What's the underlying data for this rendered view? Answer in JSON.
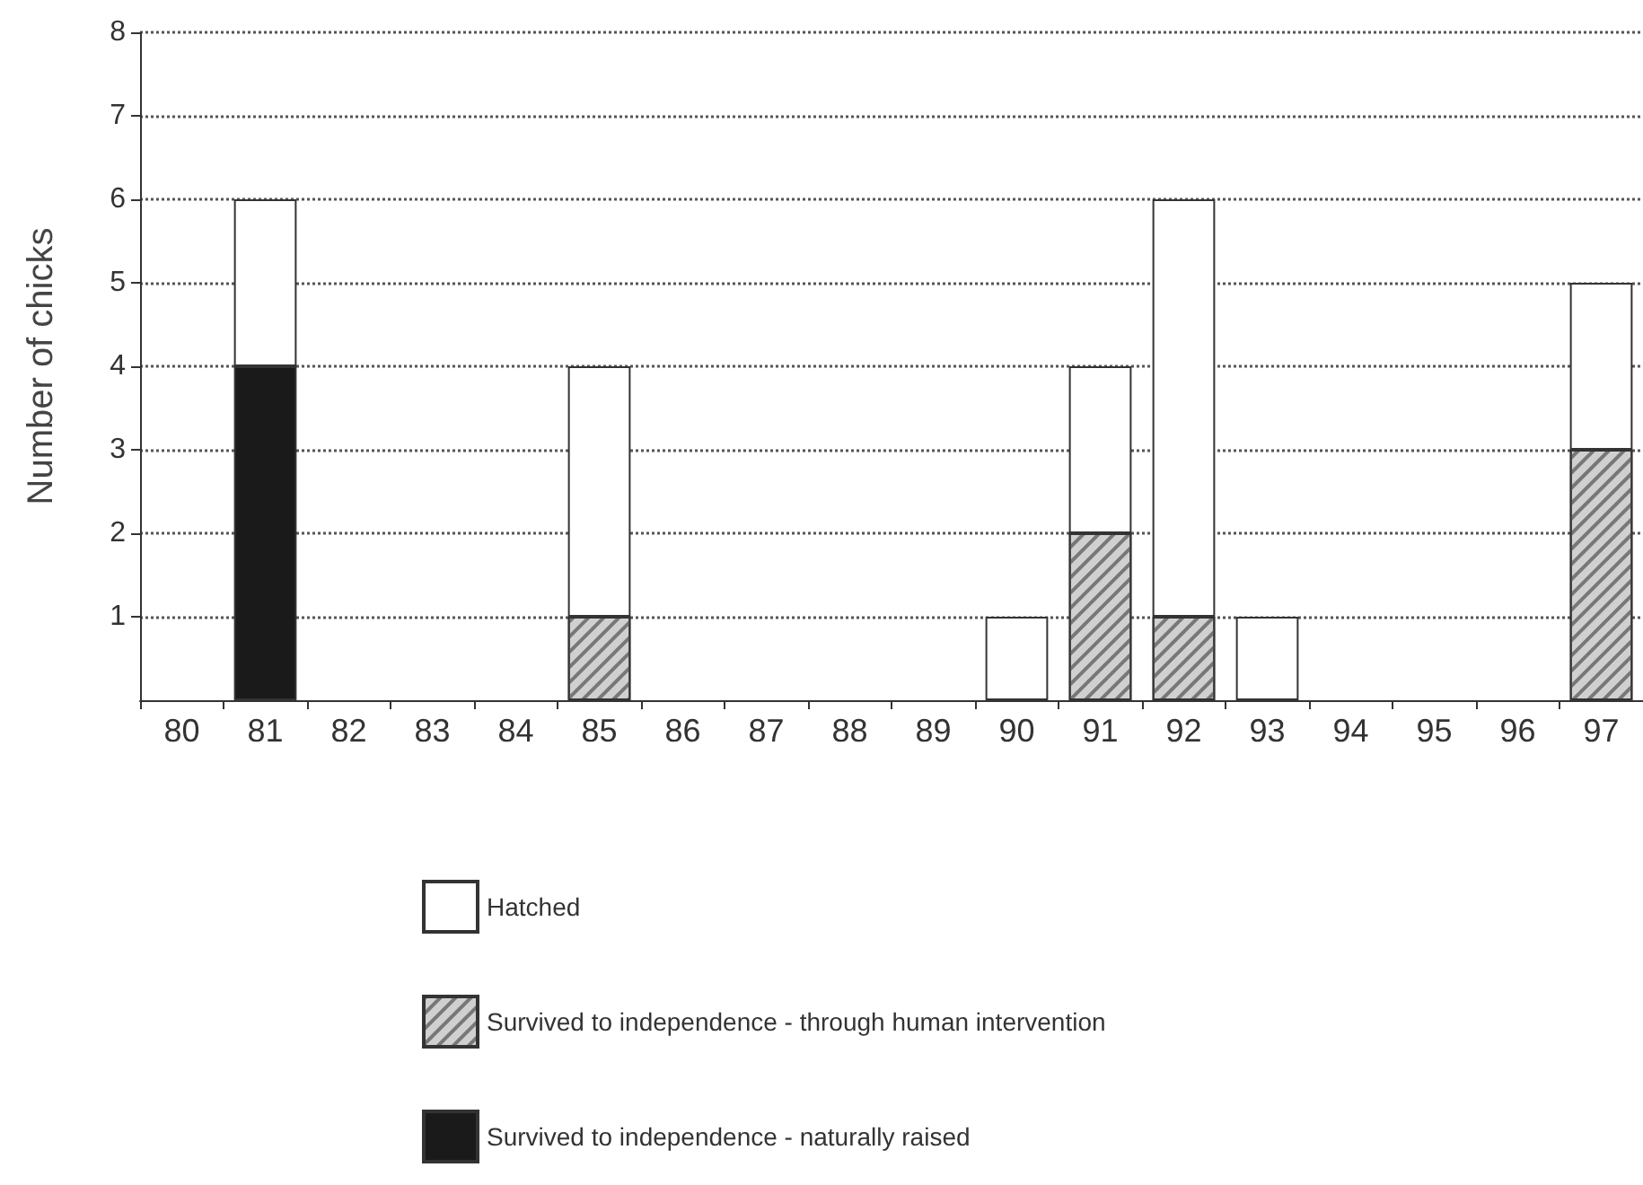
{
  "chart_data": {
    "type": "bar",
    "stacked": true,
    "ylabel": "Number of chicks",
    "categories": [
      "80",
      "81",
      "82",
      "83",
      "84",
      "85",
      "86",
      "87",
      "88",
      "89",
      "90",
      "91",
      "92",
      "93",
      "94",
      "95",
      "96",
      "97"
    ],
    "series": [
      {
        "name": "Survived to independence - naturally raised",
        "color": "#1a1a1a",
        "values": [
          null,
          4,
          null,
          null,
          null,
          null,
          null,
          null,
          null,
          null,
          null,
          null,
          null,
          null,
          null,
          null,
          null,
          null
        ]
      },
      {
        "name": "Survived to independence - through human intervention",
        "color": "#d0d0d0",
        "values": [
          null,
          null,
          null,
          null,
          null,
          1,
          null,
          null,
          null,
          null,
          null,
          2,
          1,
          null,
          null,
          null,
          null,
          3
        ]
      },
      {
        "name": "Hatched",
        "color": "#ffffff",
        "values": [
          null,
          2,
          null,
          null,
          null,
          3,
          null,
          null,
          null,
          null,
          1,
          2,
          5,
          1,
          null,
          null,
          null,
          2
        ]
      }
    ],
    "ylim": [
      0,
      8
    ],
    "yticks": [
      1,
      2,
      3,
      4,
      5,
      6,
      7,
      8
    ],
    "grid": "y",
    "legend": "bottom"
  }
}
